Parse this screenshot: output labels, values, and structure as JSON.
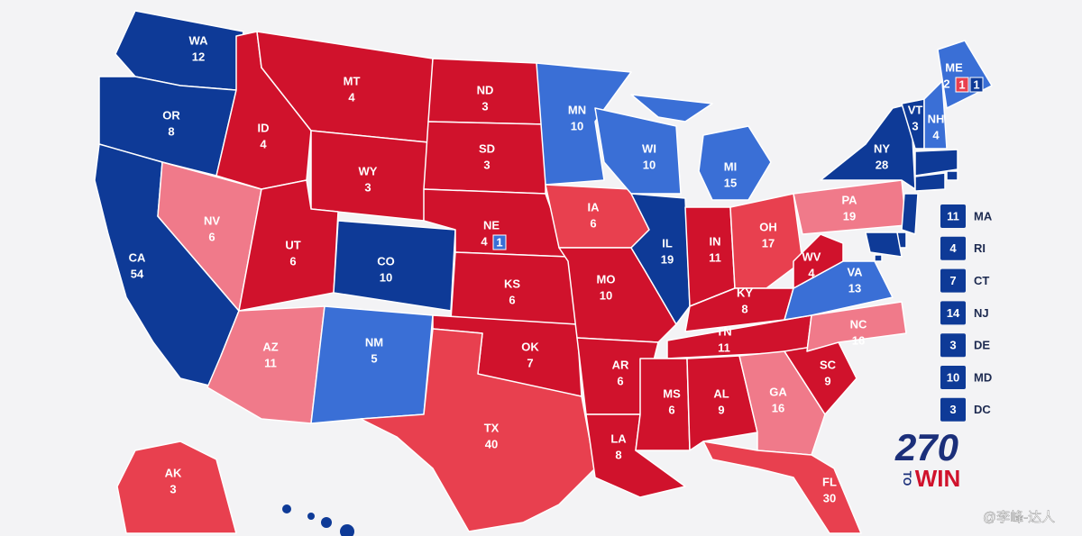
{
  "states": [
    {
      "abbr": "WA",
      "votes": 12,
      "color": "#0e3a97"
    },
    {
      "abbr": "OR",
      "votes": 8,
      "color": "#0e3a97"
    },
    {
      "abbr": "CA",
      "votes": 54,
      "color": "#0e3a97"
    },
    {
      "abbr": "NV",
      "votes": 6,
      "color": "#f07a8a"
    },
    {
      "abbr": "ID",
      "votes": 4,
      "color": "#d0122c"
    },
    {
      "abbr": "MT",
      "votes": 4,
      "color": "#d0122c"
    },
    {
      "abbr": "WY",
      "votes": 3,
      "color": "#d0122c"
    },
    {
      "abbr": "UT",
      "votes": 6,
      "color": "#d0122c"
    },
    {
      "abbr": "CO",
      "votes": 10,
      "color": "#0e3a97"
    },
    {
      "abbr": "AZ",
      "votes": 11,
      "color": "#f07a8a"
    },
    {
      "abbr": "NM",
      "votes": 5,
      "color": "#3a6fd6"
    },
    {
      "abbr": "ND",
      "votes": 3,
      "color": "#d0122c"
    },
    {
      "abbr": "SD",
      "votes": 3,
      "color": "#d0122c"
    },
    {
      "abbr": "NE",
      "votes": 4,
      "color": "#d0122c",
      "split": [
        {
          "votes": 1,
          "color": "#3a6fd6"
        }
      ]
    },
    {
      "abbr": "KS",
      "votes": 6,
      "color": "#d0122c"
    },
    {
      "abbr": "OK",
      "votes": 7,
      "color": "#d0122c"
    },
    {
      "abbr": "TX",
      "votes": 40,
      "color": "#e8404f"
    },
    {
      "abbr": "MN",
      "votes": 10,
      "color": "#3a6fd6"
    },
    {
      "abbr": "IA",
      "votes": 6,
      "color": "#e8404f"
    },
    {
      "abbr": "MO",
      "votes": 10,
      "color": "#d0122c"
    },
    {
      "abbr": "AR",
      "votes": 6,
      "color": "#d0122c"
    },
    {
      "abbr": "LA",
      "votes": 8,
      "color": "#d0122c"
    },
    {
      "abbr": "WI",
      "votes": 10,
      "color": "#3a6fd6"
    },
    {
      "abbr": "IL",
      "votes": 19,
      "color": "#0e3a97"
    },
    {
      "abbr": "MI",
      "votes": 15,
      "color": "#3a6fd6"
    },
    {
      "abbr": "IN",
      "votes": 11,
      "color": "#d0122c"
    },
    {
      "abbr": "OH",
      "votes": 17,
      "color": "#e8404f"
    },
    {
      "abbr": "KY",
      "votes": 8,
      "color": "#d0122c"
    },
    {
      "abbr": "TN",
      "votes": 11,
      "color": "#d0122c"
    },
    {
      "abbr": "MS",
      "votes": 6,
      "color": "#d0122c"
    },
    {
      "abbr": "AL",
      "votes": 9,
      "color": "#d0122c"
    },
    {
      "abbr": "GA",
      "votes": 16,
      "color": "#f07a8a"
    },
    {
      "abbr": "FL",
      "votes": 30,
      "color": "#e8404f"
    },
    {
      "abbr": "SC",
      "votes": 9,
      "color": "#d0122c"
    },
    {
      "abbr": "NC",
      "votes": 16,
      "color": "#f07a8a"
    },
    {
      "abbr": "VA",
      "votes": 13,
      "color": "#3a6fd6"
    },
    {
      "abbr": "WV",
      "votes": 4,
      "color": "#d0122c"
    },
    {
      "abbr": "PA",
      "votes": 19,
      "color": "#f07a8a"
    },
    {
      "abbr": "NY",
      "votes": 28,
      "color": "#0e3a97"
    },
    {
      "abbr": "VT",
      "votes": 3,
      "color": "#0e3a97"
    },
    {
      "abbr": "NH",
      "votes": 4,
      "color": "#3a6fd6"
    },
    {
      "abbr": "ME",
      "votes": 2,
      "color": "#3a6fd6",
      "split": [
        {
          "votes": 1,
          "color": "#e8404f"
        },
        {
          "votes": 1,
          "color": "#0e3a97"
        }
      ]
    },
    {
      "abbr": "AK",
      "votes": 3,
      "color": "#e8404f"
    }
  ],
  "small_states": [
    {
      "abbr": "MA",
      "votes": 11,
      "color": "#0e3a97"
    },
    {
      "abbr": "RI",
      "votes": 4,
      "color": "#0e3a97"
    },
    {
      "abbr": "CT",
      "votes": 7,
      "color": "#0e3a97"
    },
    {
      "abbr": "NJ",
      "votes": 14,
      "color": "#0e3a97"
    },
    {
      "abbr": "DE",
      "votes": 3,
      "color": "#0e3a97"
    },
    {
      "abbr": "MD",
      "votes": 10,
      "color": "#0e3a97"
    },
    {
      "abbr": "DC",
      "votes": 3,
      "color": "#0e3a97"
    }
  ],
  "logo": {
    "number": "270",
    "to": "TO",
    "win": "WIN"
  },
  "watermark": "@李峰-达人"
}
